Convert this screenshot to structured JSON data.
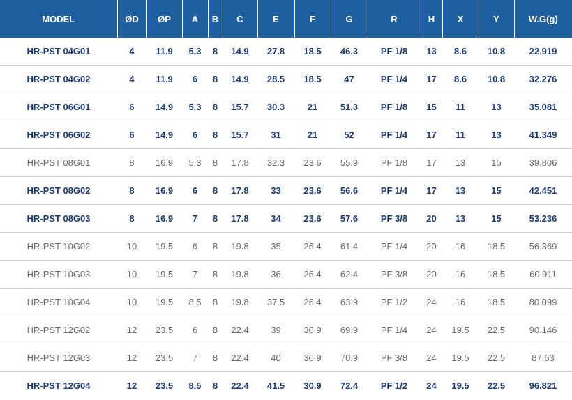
{
  "table": {
    "headers": [
      "MODEL",
      "ØD",
      "ØP",
      "A",
      "B",
      "C",
      "E",
      "F",
      "G",
      "R",
      "H",
      "X",
      "Y",
      "W.G(g)"
    ],
    "rows": [
      {
        "emphasis": "bold",
        "cells": [
          "HR-PST 04G01",
          "4",
          "11.9",
          "5.3",
          "8",
          "14.9",
          "27.8",
          "18.5",
          "46.3",
          "PF 1/8",
          "13",
          "8.6",
          "10.8",
          "22.919"
        ]
      },
      {
        "emphasis": "bold",
        "cells": [
          "HR-PST 04G02",
          "4",
          "11.9",
          "6",
          "8",
          "14.9",
          "28.5",
          "18.5",
          "47",
          "PF 1/4",
          "17",
          "8.6",
          "10.8",
          "32.276"
        ]
      },
      {
        "emphasis": "bold",
        "cells": [
          "HR-PST 06G01",
          "6",
          "14.9",
          "5.3",
          "8",
          "15.7",
          "30.3",
          "21",
          "51.3",
          "PF 1/8",
          "15",
          "11",
          "13",
          "35.081"
        ]
      },
      {
        "emphasis": "bold",
        "cells": [
          "HR-PST 06G02",
          "6",
          "14.9",
          "6",
          "8",
          "15.7",
          "31",
          "21",
          "52",
          "PF 1/4",
          "17",
          "11",
          "13",
          "41.349"
        ]
      },
      {
        "emphasis": "normal",
        "cells": [
          "HR-PST 08G01",
          "8",
          "16.9",
          "5.3",
          "8",
          "17.8",
          "32.3",
          "23.6",
          "55.9",
          "PF 1/8",
          "17",
          "13",
          "15",
          "39.806"
        ]
      },
      {
        "emphasis": "bold",
        "cells": [
          "HR-PST 08G02",
          "8",
          "16.9",
          "6",
          "8",
          "17.8",
          "33",
          "23.6",
          "56.6",
          "PF 1/4",
          "17",
          "13",
          "15",
          "42.451"
        ]
      },
      {
        "emphasis": "bold",
        "cells": [
          "HR-PST 08G03",
          "8",
          "16.9",
          "7",
          "8",
          "17.8",
          "34",
          "23.6",
          "57.6",
          "PF 3/8",
          "20",
          "13",
          "15",
          "53.236"
        ]
      },
      {
        "emphasis": "normal",
        "cells": [
          "HR-PST 10G02",
          "10",
          "19.5",
          "6",
          "8",
          "19.8",
          "35",
          "26.4",
          "61.4",
          "PF 1/4",
          "20",
          "16",
          "18.5",
          "56.369"
        ]
      },
      {
        "emphasis": "normal",
        "cells": [
          "HR-PST 10G03",
          "10",
          "19.5",
          "7",
          "8",
          "19.8",
          "36",
          "26.4",
          "62.4",
          "PF 3/8",
          "20",
          "16",
          "18.5",
          "60.911"
        ]
      },
      {
        "emphasis": "normal",
        "cells": [
          "HR-PST 10G04",
          "10",
          "19.5",
          "8.5",
          "8",
          "19.8",
          "37.5",
          "26.4",
          "63.9",
          "PF 1/2",
          "24",
          "16",
          "18.5",
          "80.099"
        ]
      },
      {
        "emphasis": "normal",
        "cells": [
          "HR-PST 12G02",
          "12",
          "23.5",
          "6",
          "8",
          "22.4",
          "39",
          "30.9",
          "69.9",
          "PF 1/4",
          "24",
          "19.5",
          "22.5",
          "90.146"
        ]
      },
      {
        "emphasis": "normal",
        "cells": [
          "HR-PST 12G03",
          "12",
          "23.5",
          "7",
          "8",
          "22.4",
          "40",
          "30.9",
          "70.9",
          "PF 3/8",
          "24",
          "19.5",
          "22.5",
          "87.63"
        ]
      },
      {
        "emphasis": "bold",
        "cells": [
          "HR-PST 12G04",
          "12",
          "23.5",
          "8.5",
          "8",
          "22.4",
          "41.5",
          "30.9",
          "72.4",
          "PF 1/2",
          "24",
          "19.5",
          "22.5",
          "96.821"
        ]
      }
    ]
  },
  "colors": {
    "header_background": "#1f5f9d",
    "header_text": "#ffffff",
    "bold_row_text": "#1d3c78",
    "normal_row_text": "#6b6b6b",
    "row_divider": "#cfcfcf"
  }
}
